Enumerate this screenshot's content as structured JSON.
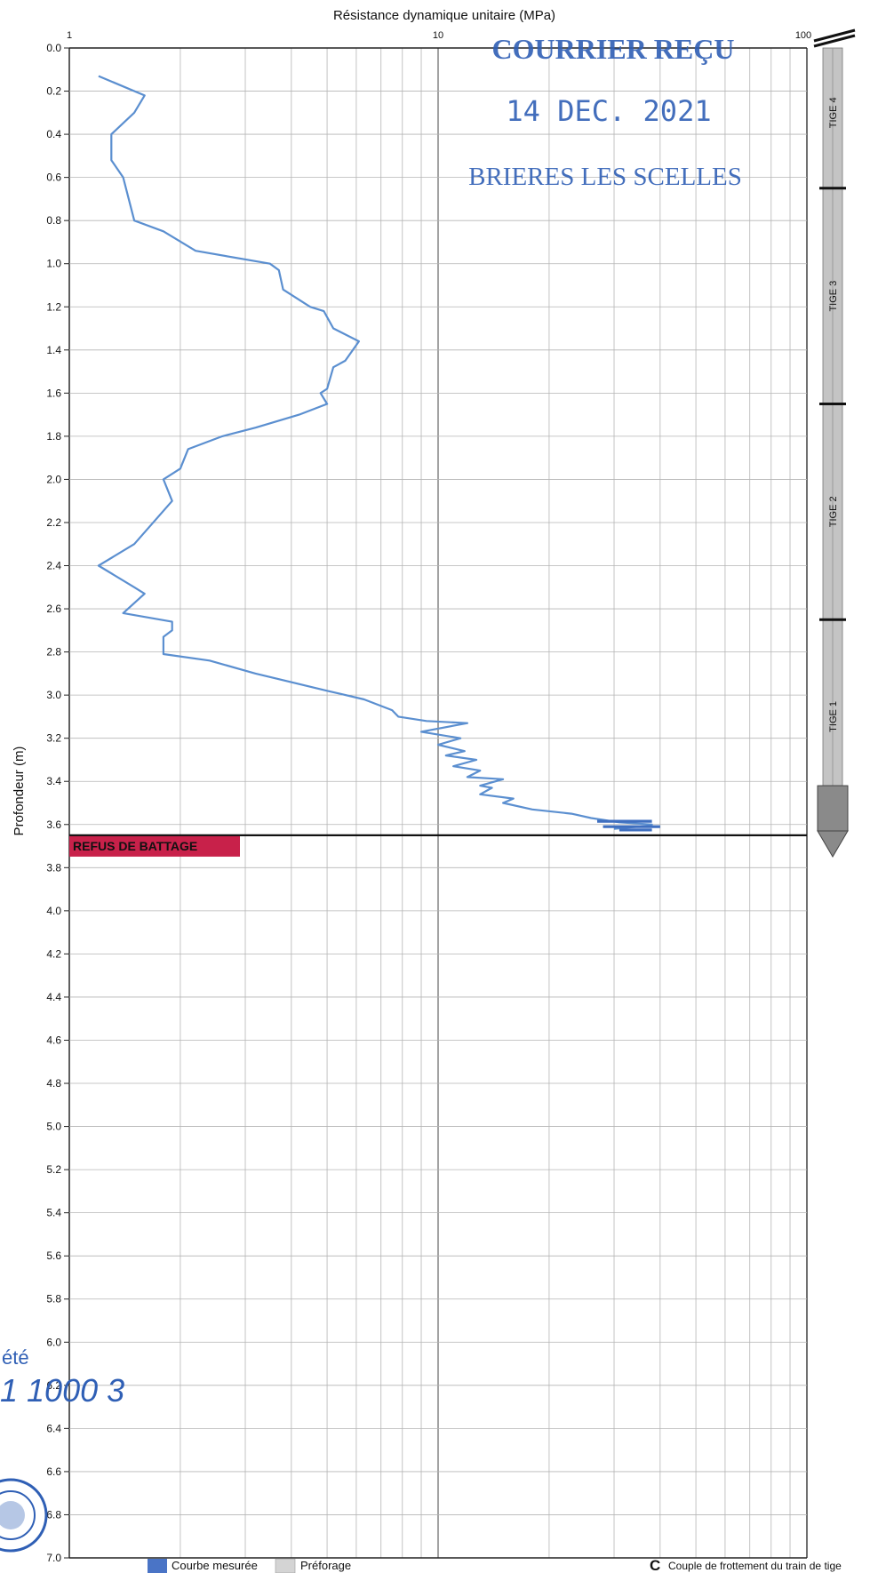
{
  "chart_data": {
    "type": "line",
    "title": "Résistance dynamique unitaire (MPa)",
    "xlabel": "Résistance dynamique unitaire (MPa)",
    "ylabel": "Profondeur (m)",
    "x_scale": "log",
    "xlim": [
      1,
      100
    ],
    "ylim": [
      0,
      7.0
    ],
    "y_inverted": true,
    "grid": true,
    "x_ticks": [
      "1",
      "10",
      "100"
    ],
    "y_ticks": [
      "0.0",
      "0.2",
      "0.4",
      "0.6",
      "0.8",
      "1.0",
      "1.2",
      "1.4",
      "1.6",
      "1.8",
      "2.0",
      "2.2",
      "2.4",
      "2.6",
      "2.8",
      "3.0",
      "3.2",
      "3.4",
      "3.6",
      "3.8",
      "4.0",
      "4.2",
      "4.4",
      "4.6",
      "4.8",
      "5.0",
      "5.2",
      "5.4",
      "5.6",
      "5.8",
      "6.0",
      "6.2",
      "6.4",
      "6.6",
      "6.8",
      "7.0"
    ],
    "series": [
      {
        "name": "Courbe mesurée",
        "color": "#5b8fd0",
        "points": [
          [
            1.2,
            0.13
          ],
          [
            1.6,
            0.22
          ],
          [
            1.5,
            0.3
          ],
          [
            1.3,
            0.4
          ],
          [
            1.3,
            0.52
          ],
          [
            1.4,
            0.6
          ],
          [
            1.5,
            0.8
          ],
          [
            1.8,
            0.85
          ],
          [
            2.2,
            0.94
          ],
          [
            3.5,
            1.0
          ],
          [
            3.7,
            1.03
          ],
          [
            3.8,
            1.12
          ],
          [
            4.5,
            1.2
          ],
          [
            4.9,
            1.22
          ],
          [
            5.2,
            1.3
          ],
          [
            6.1,
            1.36
          ],
          [
            5.6,
            1.45
          ],
          [
            5.2,
            1.48
          ],
          [
            5.0,
            1.58
          ],
          [
            4.8,
            1.6
          ],
          [
            5.0,
            1.65
          ],
          [
            4.2,
            1.7
          ],
          [
            3.2,
            1.76
          ],
          [
            2.6,
            1.8
          ],
          [
            2.1,
            1.86
          ],
          [
            2.0,
            1.95
          ],
          [
            1.8,
            2.0
          ],
          [
            1.9,
            2.1
          ],
          [
            1.5,
            2.3
          ],
          [
            1.2,
            2.4
          ],
          [
            1.5,
            2.5
          ],
          [
            1.6,
            2.53
          ],
          [
            1.4,
            2.62
          ],
          [
            1.9,
            2.66
          ],
          [
            1.9,
            2.7
          ],
          [
            1.8,
            2.73
          ],
          [
            1.8,
            2.81
          ],
          [
            2.4,
            2.84
          ],
          [
            3.2,
            2.9
          ],
          [
            5.0,
            2.98
          ],
          [
            6.3,
            3.02
          ],
          [
            7.5,
            3.07
          ],
          [
            7.8,
            3.1
          ],
          [
            9.3,
            3.12
          ],
          [
            12.0,
            3.13
          ],
          [
            9.0,
            3.17
          ],
          [
            11.5,
            3.2
          ],
          [
            10.0,
            3.23
          ],
          [
            11.8,
            3.26
          ],
          [
            10.5,
            3.28
          ],
          [
            12.7,
            3.3
          ],
          [
            11.0,
            3.33
          ],
          [
            13.0,
            3.35
          ],
          [
            12.0,
            3.38
          ],
          [
            15.0,
            3.39
          ],
          [
            13.0,
            3.42
          ],
          [
            14.0,
            3.43
          ],
          [
            13.0,
            3.46
          ],
          [
            16.0,
            3.48
          ],
          [
            15.0,
            3.5
          ],
          [
            18.0,
            3.53
          ],
          [
            23.0,
            3.55
          ],
          [
            26.0,
            3.57
          ],
          [
            31.0,
            3.59
          ],
          [
            38.0,
            3.6
          ],
          [
            35.0,
            3.61
          ],
          [
            30.0,
            3.62
          ]
        ]
      }
    ],
    "refusal_depth": 3.65
  },
  "labels": {
    "refus": "REFUS DE BATTAGE",
    "tiges": [
      "TIGE 4",
      "TIGE 3",
      "TIGE 2",
      "TIGE 1"
    ]
  },
  "legend": {
    "items": [
      {
        "label": "Courbe mesurée",
        "color": "#4a74c6"
      },
      {
        "label": "Préforage",
        "color": "#d4d4d4"
      }
    ],
    "couple": "Couple de frottement du train de tige",
    "couple_symbol": "C"
  },
  "stamp": {
    "line1": "COURRIER REÇU",
    "line2": "14 DEC. 2021",
    "line3": "BRIERES LES SCELLES",
    "color": "#2f5fb5"
  },
  "margin_note": {
    "line1": "été",
    "line2": "1 1000 3"
  }
}
